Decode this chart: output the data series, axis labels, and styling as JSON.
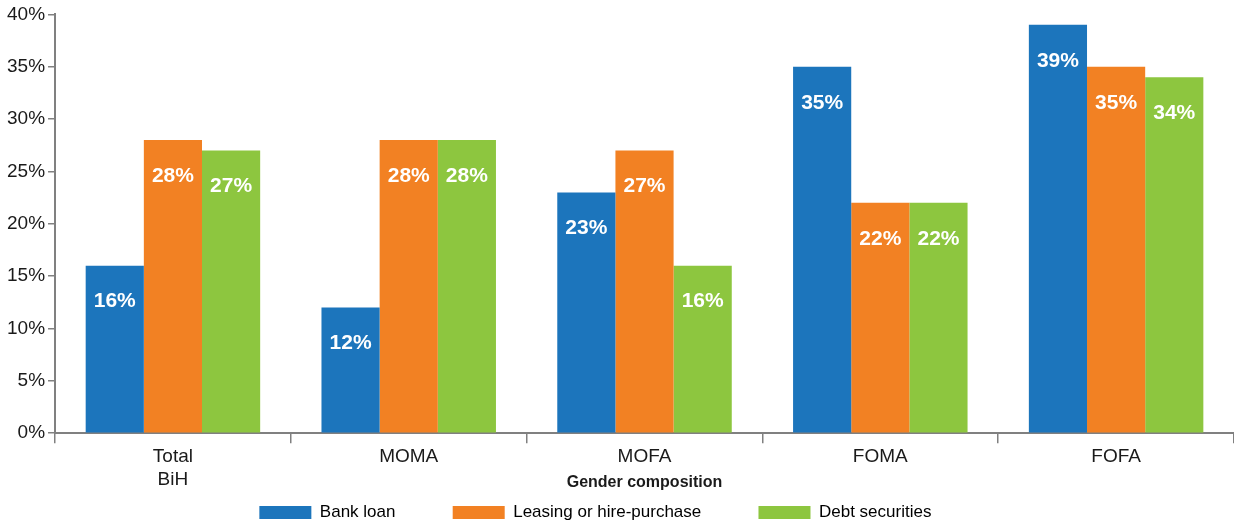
{
  "chart_data": {
    "type": "bar",
    "xlabel": "Gender composition",
    "categories": [
      "Total\nBiH",
      "MOMA",
      "MOFA",
      "FOMA",
      "FOFA"
    ],
    "series": [
      {
        "name": "Bank loan",
        "color": "#1c75bc",
        "values": [
          16,
          12,
          23,
          35,
          39
        ],
        "value_labels": [
          "16%",
          "12%",
          "23%",
          "35%",
          "39%"
        ]
      },
      {
        "name": "Leasing or hire-purchase",
        "color": "#f28123",
        "values": [
          28,
          28,
          27,
          22,
          35
        ],
        "value_labels": [
          "28%",
          "28%",
          "27%",
          "22%",
          "35%"
        ]
      },
      {
        "name": "Debt securities",
        "color": "#8dc63f",
        "values": [
          27,
          28,
          16,
          22,
          34
        ],
        "value_labels": [
          "27%",
          "28%",
          "16%",
          "22%",
          "34%"
        ]
      }
    ],
    "ylim": [
      0,
      40
    ],
    "yticks": [
      {
        "value": 0,
        "label": "0%"
      },
      {
        "value": 5,
        "label": "5%"
      },
      {
        "value": 10,
        "label": "10%"
      },
      {
        "value": 15,
        "label": "15%"
      },
      {
        "value": 20,
        "label": "20%"
      },
      {
        "value": 25,
        "label": "25%"
      },
      {
        "value": 30,
        "label": "30%"
      },
      {
        "value": 35,
        "label": "35%"
      },
      {
        "value": 40,
        "label": "40%"
      }
    ],
    "legend": "bottom"
  }
}
